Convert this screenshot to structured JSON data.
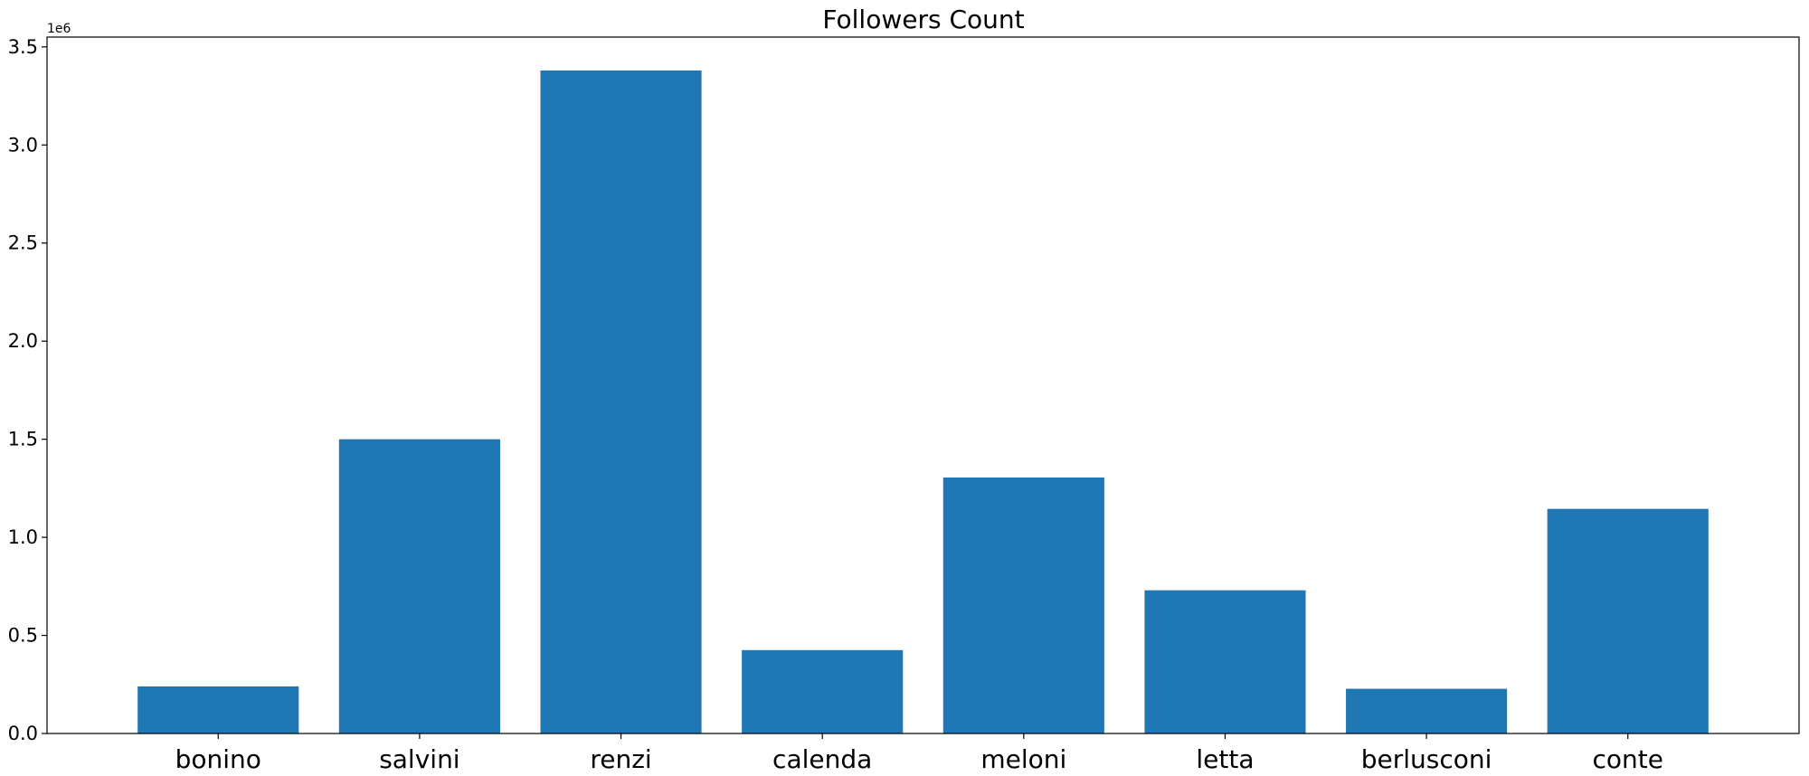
{
  "chart_data": {
    "type": "bar",
    "title": "Followers Count",
    "xlabel": "",
    "ylabel": "",
    "y_offset_label": "1e6",
    "categories": [
      "bonino",
      "salvini",
      "renzi",
      "calenda",
      "meloni",
      "letta",
      "berlusconi",
      "conte"
    ],
    "values": [
      240000,
      1500000,
      3380000,
      425000,
      1305000,
      730000,
      228000,
      1145000
    ],
    "ylim": [
      0,
      3550000
    ],
    "yticks": [
      0,
      500000,
      1000000,
      1500000,
      2000000,
      2500000,
      3000000,
      3500000
    ],
    "ytick_labels": [
      "0.0",
      "0.5",
      "1.0",
      "1.5",
      "2.0",
      "2.5",
      "3.0",
      "3.5"
    ],
    "bar_color": "#1f77b4",
    "grid": false,
    "legend": "none"
  }
}
